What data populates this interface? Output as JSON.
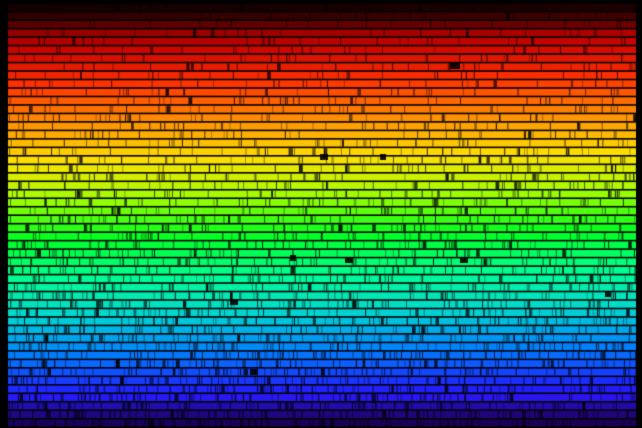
{
  "image": {
    "subject": "solar-spectrum",
    "palette": [
      "#3a0000",
      "#c00000",
      "#ff3000",
      "#ff9000",
      "#ffe000",
      "#a0ff00",
      "#00ff20",
      "#00ff90",
      "#00d8d0",
      "#0080ff",
      "#2020ff",
      "#4000c0"
    ],
    "background": "#000000"
  }
}
